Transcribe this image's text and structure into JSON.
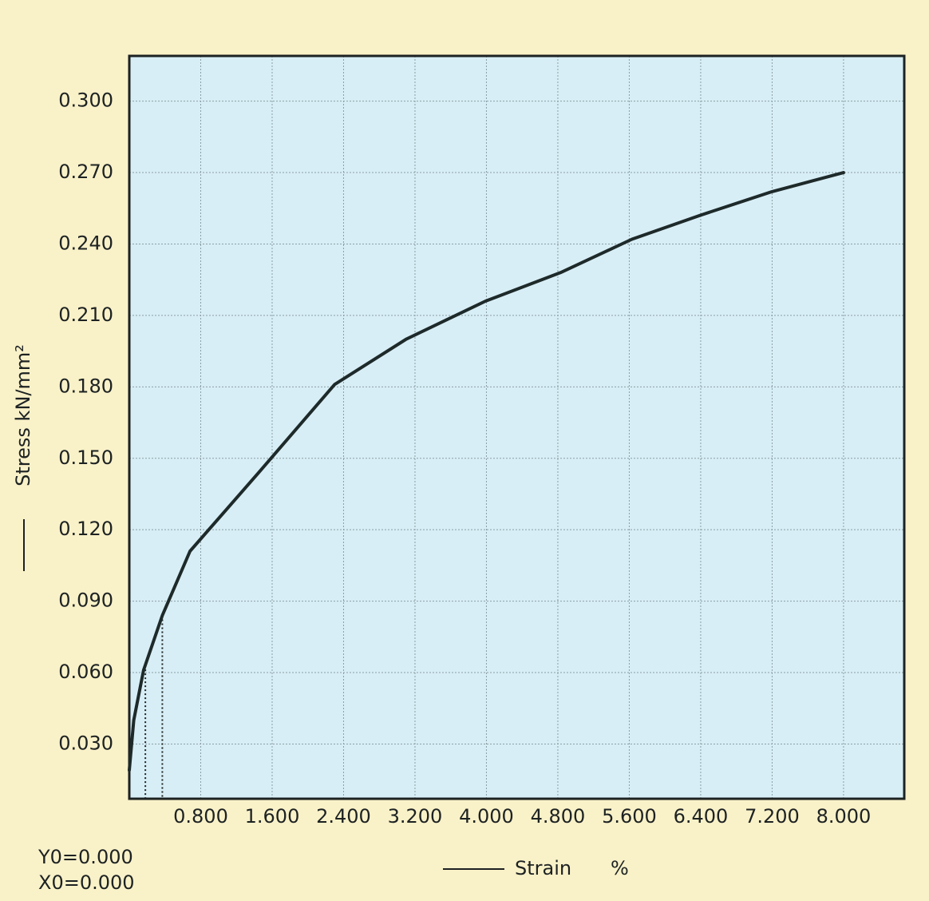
{
  "chart_data": {
    "type": "line",
    "ylabel": "Stress kN/mm²",
    "xlabel": "Strain",
    "xunit": "%",
    "notes": [
      "Y0=0.000",
      "X0=0.000"
    ],
    "xlim": [
      0,
      8.68
    ],
    "ylim": [
      0.007,
      0.319
    ],
    "xticks": [
      {
        "value": 0.8,
        "label": "0.800"
      },
      {
        "value": 1.6,
        "label": "1.600"
      },
      {
        "value": 2.4,
        "label": "2.400"
      },
      {
        "value": 3.2,
        "label": "3.200"
      },
      {
        "value": 4.0,
        "label": "4.000"
      },
      {
        "value": 4.8,
        "label": "4.800"
      },
      {
        "value": 5.6,
        "label": "5.600"
      },
      {
        "value": 6.4,
        "label": "6.400"
      },
      {
        "value": 7.2,
        "label": "7.200"
      },
      {
        "value": 8.0,
        "label": "8.000"
      }
    ],
    "yticks": [
      {
        "value": 0.03,
        "label": "0.030"
      },
      {
        "value": 0.06,
        "label": "0.060"
      },
      {
        "value": 0.09,
        "label": "0.090"
      },
      {
        "value": 0.12,
        "label": "0.120"
      },
      {
        "value": 0.15,
        "label": "0.150"
      },
      {
        "value": 0.18,
        "label": "0.180"
      },
      {
        "value": 0.21,
        "label": "0.210"
      },
      {
        "value": 0.24,
        "label": "0.240"
      },
      {
        "value": 0.27,
        "label": "0.270"
      },
      {
        "value": 0.3,
        "label": "0.300"
      }
    ],
    "grid": true,
    "color": "#1e2a2a",
    "x": [
      0,
      0.05,
      0.16,
      0.37,
      0.68,
      1.45,
      2.3,
      3.1,
      3.99,
      4.83,
      5.63,
      6.39,
      7.2,
      8.0
    ],
    "values": [
      0.019,
      0.04,
      0.061,
      0.084,
      0.111,
      0.144,
      0.181,
      0.2,
      0.216,
      0.228,
      0.242,
      0.252,
      0.262,
      0.27
    ],
    "drop_lines": [
      {
        "x": 0.18,
        "y": 0.063
      },
      {
        "x": 0.37,
        "y": 0.084
      }
    ]
  }
}
